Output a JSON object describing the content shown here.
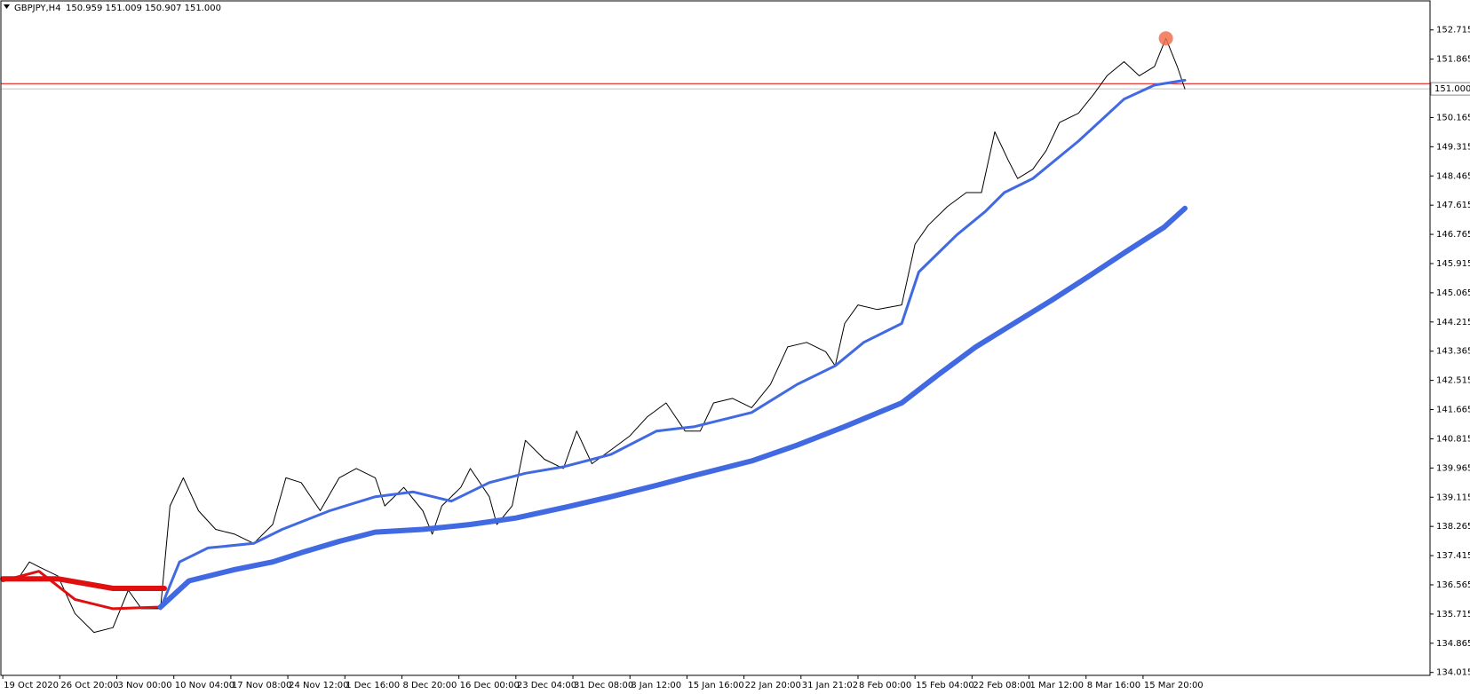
{
  "chart_data": {
    "type": "line",
    "title": "GBPJPY,H4",
    "subtitle": "150.959 151.009 150.907 151.000",
    "xlim": [
      -1,
      751
    ],
    "xticks": [
      {
        "value": 0,
        "label": "19 Oct 2020"
      },
      {
        "value": 30,
        "label": "26 Oct 20:00"
      },
      {
        "value": 60,
        "label": "3 Nov 00:00"
      },
      {
        "value": 90,
        "label": "10 Nov 04:00"
      },
      {
        "value": 120,
        "label": "17 Nov 08:00"
      },
      {
        "value": 150,
        "label": "24 Nov 12:00"
      },
      {
        "value": 180,
        "label": "1 Dec 16:00"
      },
      {
        "value": 210,
        "label": "8 Dec 20:00"
      },
      {
        "value": 240,
        "label": "16 Dec 00:00"
      },
      {
        "value": 270,
        "label": "23 Dec 04:00"
      },
      {
        "value": 300,
        "label": "31 Dec 08:00"
      },
      {
        "value": 330,
        "label": "8 Jan 12:00"
      },
      {
        "value": 360,
        "label": "15 Jan 16:00"
      },
      {
        "value": 390,
        "label": "22 Jan 20:00"
      },
      {
        "value": 420,
        "label": "31 Jan 21:02"
      },
      {
        "value": 450,
        "label": "8 Feb 00:00"
      },
      {
        "value": 480,
        "label": "15 Feb 04:00"
      },
      {
        "value": 510,
        "label": "22 Feb 08:00"
      },
      {
        "value": 540,
        "label": "1 Mar 12:00"
      },
      {
        "value": 570,
        "label": "8 Mar 16:00"
      },
      {
        "value": 600,
        "label": "15 Mar 20:00"
      }
    ],
    "ylim": [
      133.93,
      153.56
    ],
    "yticks": [
      152.715,
      151.865,
      150.165,
      149.315,
      148.465,
      147.615,
      146.765,
      145.915,
      145.065,
      144.215,
      143.365,
      142.515,
      141.665,
      140.815,
      139.965,
      139.115,
      138.265,
      137.415,
      136.565,
      135.715,
      134.865,
      134.015
    ],
    "current_price": {
      "value": 151,
      "label": "151.000",
      "color": "#c0c0c0"
    },
    "level_line": {
      "value": 151.15,
      "color": "#e00000"
    },
    "marker": {
      "x": 612,
      "value": 152.47,
      "color": "#f07050"
    },
    "series": [
      {
        "color": "#000000",
        "width": 1,
        "x": [
          0,
          9,
          14,
          19,
          29,
          38,
          48,
          58,
          66,
          73,
          83,
          88,
          95,
          103,
          112,
          122,
          132,
          142,
          149,
          157,
          167,
          177,
          186,
          196,
          201,
          211,
          221,
          226,
          231,
          241,
          246,
          256,
          260,
          268,
          275,
          285,
          295,
          302,
          310,
          320,
          330,
          339,
          349,
          359,
          367,
          374,
          384,
          394,
          404,
          413,
          423,
          433,
          438,
          443,
          450,
          460,
          473,
          480,
          487,
          497,
          507,
          515,
          522,
          529,
          534,
          542,
          549,
          556,
          566,
          574,
          581,
          590,
          598,
          606,
          612,
          618,
          622
        ],
        "values": [
          136.68,
          136.82,
          137.23,
          137.09,
          136.82,
          135.73,
          135.18,
          135.32,
          136.41,
          135.87,
          135.87,
          138.86,
          139.68,
          138.72,
          138.18,
          138.04,
          137.77,
          138.32,
          139.68,
          139.54,
          138.72,
          139.68,
          139.95,
          139.68,
          138.86,
          139.4,
          138.72,
          138.04,
          138.86,
          139.4,
          139.95,
          139.13,
          138.32,
          138.86,
          140.77,
          140.22,
          139.95,
          141.04,
          140.09,
          140.49,
          140.9,
          141.45,
          141.86,
          141.04,
          141.04,
          141.86,
          141.99,
          141.72,
          142.4,
          143.49,
          143.62,
          143.35,
          142.94,
          144.17,
          144.71,
          144.58,
          144.71,
          146.48,
          147.03,
          147.57,
          147.98,
          147.98,
          149.75,
          148.93,
          148.39,
          148.66,
          149.2,
          150.02,
          150.29,
          150.84,
          151.38,
          151.79,
          151.38,
          151.65,
          152.47,
          151.65,
          151.0
        ]
      },
      {
        "color": "#e01010",
        "width": 3,
        "x": [
          0,
          19,
          38,
          58,
          83
        ],
        "values": [
          136.68,
          136.96,
          136.14,
          135.87,
          135.92
        ]
      },
      {
        "color": "#e01010",
        "width": 6,
        "x": [
          0,
          29,
          58,
          85
        ],
        "values": [
          136.74,
          136.74,
          136.46,
          136.46
        ]
      },
      {
        "color": "#4169e1",
        "width": 3,
        "x": [
          83,
          93,
          108,
          132,
          147,
          172,
          196,
          216,
          236,
          256,
          275,
          295,
          320,
          344,
          364,
          394,
          418,
          438,
          453,
          473,
          482,
          502,
          517,
          527,
          542,
          566,
          590,
          606,
          622
        ],
        "values": [
          135.87,
          137.23,
          137.64,
          137.77,
          138.18,
          138.72,
          139.13,
          139.27,
          139.0,
          139.54,
          139.81,
          140.0,
          140.36,
          141.04,
          141.17,
          141.58,
          142.4,
          142.94,
          143.62,
          144.17,
          145.67,
          146.75,
          147.43,
          147.98,
          148.39,
          149.48,
          150.7,
          151.11,
          151.25
        ]
      },
      {
        "color": "#4169e1",
        "width": 6,
        "x": [
          83,
          98,
          122,
          142,
          157,
          177,
          196,
          221,
          246,
          270,
          295,
          320,
          344,
          359,
          394,
          418,
          443,
          473,
          492,
          512,
          532,
          552,
          571,
          591,
          611,
          622
        ],
        "values": [
          135.92,
          136.68,
          137.01,
          137.23,
          137.5,
          137.83,
          138.1,
          138.18,
          138.32,
          138.51,
          138.81,
          139.13,
          139.46,
          139.68,
          140.17,
          140.63,
          141.17,
          141.86,
          142.67,
          143.49,
          144.17,
          144.85,
          145.53,
          146.26,
          146.97,
          147.52
        ]
      }
    ]
  }
}
